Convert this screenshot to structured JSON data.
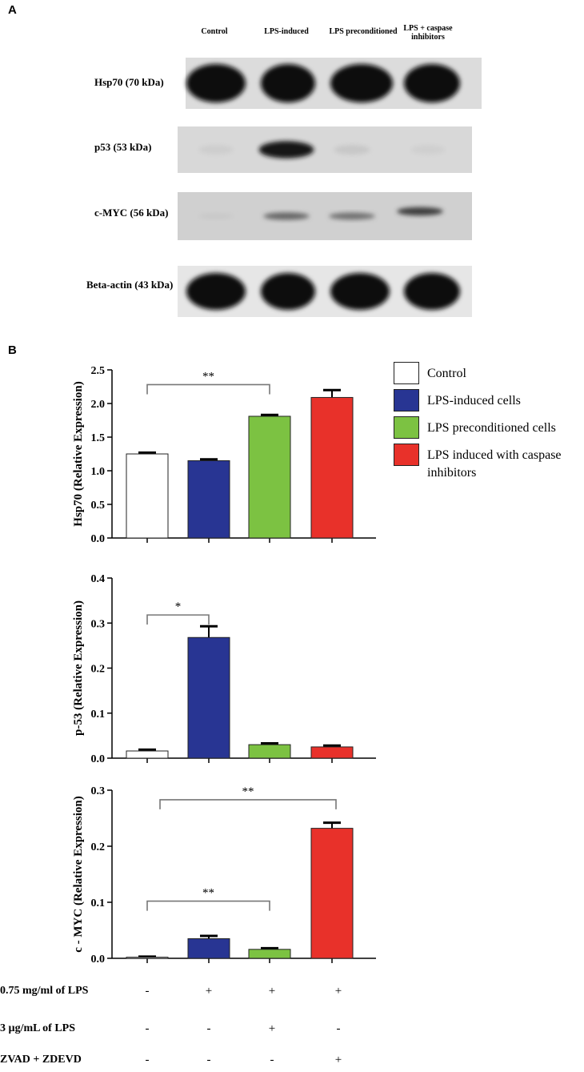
{
  "panel_a": {
    "letter": "A",
    "lanes": [
      "Control",
      "LPS-induced",
      "LPS preconditioned",
      "LPS + caspase inhibitors"
    ],
    "blots": [
      {
        "label": "Hsp70 (70 kDa)",
        "intensities": [
          1.0,
          1.0,
          1.0,
          1.0
        ]
      },
      {
        "label": "p53 (53 kDa)",
        "intensities": [
          0.05,
          0.95,
          0.08,
          0.04
        ]
      },
      {
        "label": "c-MYC (56 kDa)",
        "intensities": [
          0.08,
          0.55,
          0.5,
          0.75
        ]
      },
      {
        "label": "Beta-actin (43 kDa)",
        "intensities": [
          1.0,
          1.0,
          1.0,
          1.0
        ]
      }
    ]
  },
  "panel_b": {
    "letter": "B",
    "legend": [
      {
        "label": "Control",
        "color": "#ffffff"
      },
      {
        "label": "LPS-induced cells",
        "color": "#283593"
      },
      {
        "label": "LPS preconditioned cells",
        "color": "#7cc242"
      },
      {
        "label": "LPS induced with caspase inhibitors",
        "color": "#e8312a"
      }
    ],
    "treatments": [
      {
        "label": "0.75 mg/ml of LPS",
        "signs": [
          "-",
          "+",
          "+",
          "+"
        ]
      },
      {
        "label": "3 µg/mL of LPS",
        "signs": [
          "-",
          "-",
          "+",
          "-"
        ]
      },
      {
        "label": "ZVAD + ZDEVD",
        "signs": [
          "-",
          "-",
          "-",
          "+"
        ]
      }
    ]
  },
  "chart_data": [
    {
      "type": "bar",
      "ylabel": "Hsp70 (Relative Expression)",
      "values": [
        1.25,
        1.15,
        1.81,
        2.09
      ],
      "errors": [
        0.02,
        0.02,
        0.02,
        0.11
      ],
      "ylim": [
        0,
        2.5
      ],
      "yticks": [
        "0.0",
        "0.5",
        "1.0",
        "1.5",
        "2.0",
        "2.5"
      ],
      "colors": [
        "#ffffff",
        "#283593",
        "#7cc242",
        "#e8312a"
      ],
      "annotations": [
        {
          "from": 0,
          "to": 2,
          "label": "**"
        }
      ]
    },
    {
      "type": "bar",
      "ylabel": "p-53 (Relative Expression)",
      "values": [
        0.016,
        0.268,
        0.03,
        0.025
      ],
      "errors": [
        0.003,
        0.025,
        0.003,
        0.003
      ],
      "ylim": [
        0,
        0.4
      ],
      "yticks": [
        "0.0",
        "0.1",
        "0.2",
        "0.3",
        "0.4"
      ],
      "colors": [
        "#ffffff",
        "#283593",
        "#7cc242",
        "#e8312a"
      ],
      "annotations": [
        {
          "from": 0,
          "to": 1,
          "label": "*"
        }
      ]
    },
    {
      "type": "bar",
      "ylabel": "c - MYC (Relative Expression)",
      "values": [
        0.002,
        0.035,
        0.016,
        0.232
      ],
      "errors": [
        0.001,
        0.005,
        0.002,
        0.01
      ],
      "ylim": [
        0,
        0.3
      ],
      "yticks": [
        "0.0",
        "0.1",
        "0.2",
        "0.3"
      ],
      "colors": [
        "#ffffff",
        "#283593",
        "#7cc242",
        "#e8312a"
      ],
      "annotations": [
        {
          "from": 0,
          "to": 3,
          "label": "**"
        },
        {
          "from": 0,
          "to": 2,
          "label": "**"
        }
      ]
    }
  ]
}
